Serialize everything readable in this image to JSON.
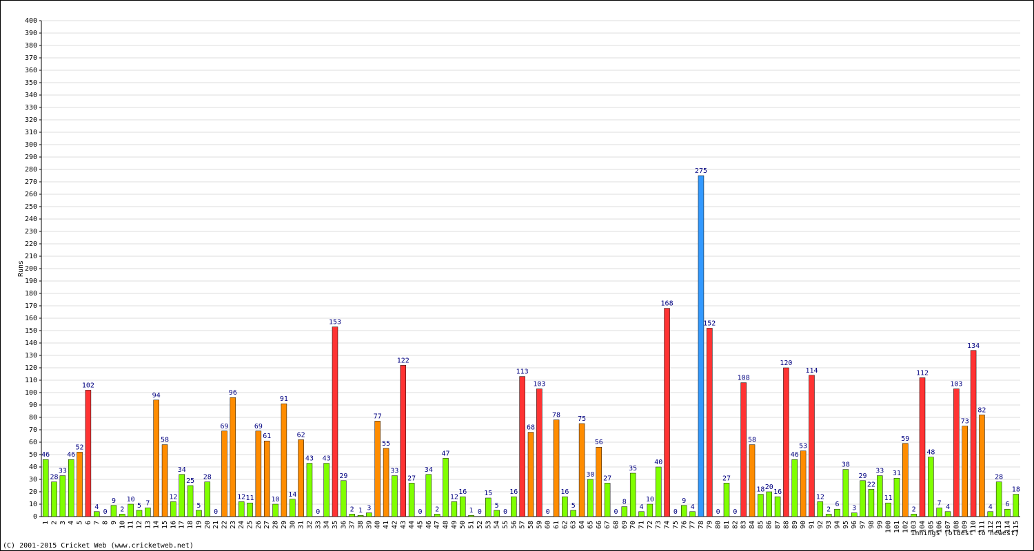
{
  "chart_data": {
    "type": "bar",
    "y_label": "Runs",
    "x_label": "Innings (oldest to newest)",
    "footer": "(C) 2001-2015 Cricket Web (www.cricketweb.net)",
    "categories": [
      "1",
      "2",
      "3",
      "4",
      "5",
      "6",
      "7",
      "8",
      "9",
      "10",
      "11",
      "12",
      "13",
      "14",
      "15",
      "16",
      "17",
      "18",
      "19",
      "20",
      "21",
      "22",
      "23",
      "24",
      "25",
      "26",
      "27",
      "28",
      "29",
      "30",
      "31",
      "32",
      "33",
      "34",
      "35",
      "36",
      "37",
      "38",
      "39",
      "40",
      "41",
      "42",
      "43",
      "44",
      "45",
      "46",
      "47",
      "48",
      "49",
      "50",
      "51",
      "52",
      "53",
      "54",
      "55",
      "56",
      "57",
      "58",
      "59",
      "60",
      "61",
      "62",
      "63",
      "64",
      "65",
      "66",
      "67",
      "68",
      "69",
      "70",
      "71",
      "72",
      "73",
      "74",
      "75",
      "76",
      "77",
      "78",
      "79",
      "80",
      "81",
      "82",
      "83",
      "84",
      "85",
      "86",
      "87",
      "88",
      "89",
      "90",
      "91",
      "92",
      "93",
      "94",
      "95",
      "96",
      "97",
      "98",
      "99",
      "100",
      "101",
      "102",
      "103",
      "104",
      "105",
      "106",
      "107",
      "108",
      "109",
      "110",
      "111",
      "112",
      "113",
      "114",
      "115"
    ],
    "values": [
      46,
      28,
      33,
      46,
      52,
      102,
      4,
      0,
      9,
      2,
      10,
      5,
      7,
      94,
      58,
      12,
      34,
      25,
      5,
      28,
      0,
      69,
      96,
      12,
      11,
      69,
      61,
      10,
      91,
      14,
      62,
      43,
      0,
      43,
      153,
      29,
      2,
      1,
      3,
      77,
      55,
      33,
      122,
      27,
      0,
      34,
      2,
      47,
      12,
      16,
      1,
      0,
      15,
      5,
      0,
      16,
      113,
      68,
      103,
      0,
      78,
      16,
      5,
      75,
      30,
      56,
      27,
      0,
      8,
      35,
      4,
      10,
      40,
      168,
      0,
      9,
      4,
      275,
      152,
      0,
      27,
      0,
      108,
      58,
      18,
      20,
      16,
      120,
      46,
      53,
      114,
      12,
      2,
      6,
      38,
      3,
      29,
      22,
      33,
      11,
      31,
      59,
      2,
      112,
      48,
      7,
      4,
      103,
      73,
      134,
      82,
      4,
      28,
      6,
      18
    ],
    "colors": [
      "#80ff00",
      "#80ff00",
      "#80ff00",
      "#80ff00",
      "#ff8c00",
      "#ff3333",
      "#80ff00",
      "#80ff00",
      "#80ff00",
      "#80ff00",
      "#80ff00",
      "#80ff00",
      "#80ff00",
      "#ff8c00",
      "#ff8c00",
      "#80ff00",
      "#80ff00",
      "#80ff00",
      "#80ff00",
      "#80ff00",
      "#80ff00",
      "#ff8c00",
      "#ff8c00",
      "#80ff00",
      "#80ff00",
      "#ff8c00",
      "#ff8c00",
      "#80ff00",
      "#ff8c00",
      "#80ff00",
      "#ff8c00",
      "#80ff00",
      "#80ff00",
      "#80ff00",
      "#ff3333",
      "#80ff00",
      "#80ff00",
      "#80ff00",
      "#80ff00",
      "#ff8c00",
      "#ff8c00",
      "#80ff00",
      "#ff3333",
      "#80ff00",
      "#80ff00",
      "#80ff00",
      "#80ff00",
      "#80ff00",
      "#80ff00",
      "#80ff00",
      "#80ff00",
      "#80ff00",
      "#80ff00",
      "#80ff00",
      "#80ff00",
      "#80ff00",
      "#ff3333",
      "#ff8c00",
      "#ff3333",
      "#80ff00",
      "#ff8c00",
      "#80ff00",
      "#80ff00",
      "#ff8c00",
      "#80ff00",
      "#ff8c00",
      "#80ff00",
      "#80ff00",
      "#80ff00",
      "#80ff00",
      "#80ff00",
      "#80ff00",
      "#80ff00",
      "#ff3333",
      "#80ff00",
      "#80ff00",
      "#80ff00",
      "#3399ff",
      "#ff3333",
      "#80ff00",
      "#80ff00",
      "#80ff00",
      "#ff3333",
      "#ff8c00",
      "#80ff00",
      "#80ff00",
      "#80ff00",
      "#ff3333",
      "#80ff00",
      "#ff8c00",
      "#ff3333",
      "#80ff00",
      "#80ff00",
      "#80ff00",
      "#80ff00",
      "#80ff00",
      "#80ff00",
      "#80ff00",
      "#80ff00",
      "#80ff00",
      "#80ff00",
      "#ff8c00",
      "#80ff00",
      "#ff3333",
      "#80ff00",
      "#80ff00",
      "#80ff00",
      "#ff3333",
      "#ff8c00",
      "#ff3333",
      "#ff8c00",
      "#80ff00",
      "#80ff00",
      "#80ff00",
      "#80ff00"
    ],
    "ylim": [
      0,
      400
    ],
    "yticks": [
      0,
      10,
      20,
      30,
      40,
      50,
      60,
      70,
      80,
      90,
      100,
      110,
      120,
      130,
      140,
      150,
      160,
      170,
      180,
      190,
      200,
      210,
      220,
      230,
      240,
      250,
      260,
      270,
      280,
      290,
      300,
      310,
      320,
      330,
      340,
      350,
      360,
      370,
      380,
      390,
      400
    ],
    "grid": true
  }
}
